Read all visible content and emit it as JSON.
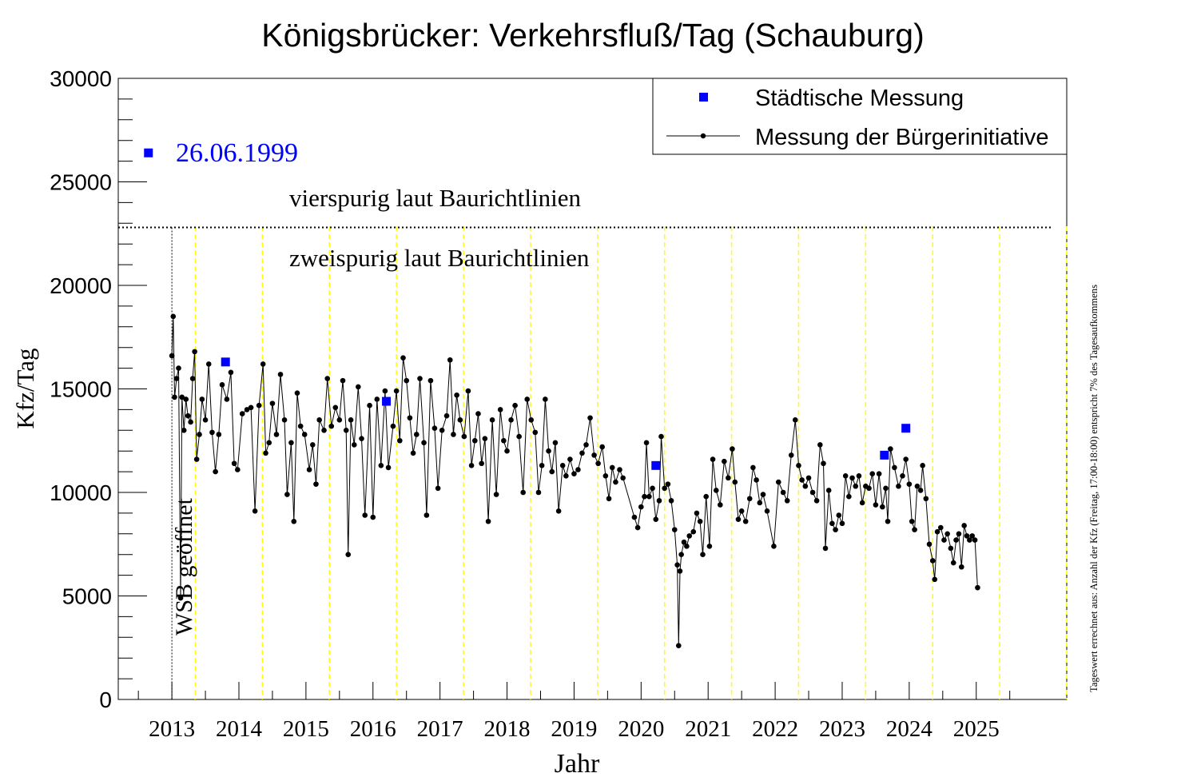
{
  "chart_data": {
    "type": "line",
    "title": "Königsbrücker: Verkehrsfluß/Tag (Schauburg)",
    "xlabel": "Jahr",
    "ylabel": "Kfz/Tag",
    "xlim": [
      2012.2,
      2026.35
    ],
    "ylim": [
      0,
      30000
    ],
    "x_ticks": [
      "2013",
      "2014",
      "2015",
      "2016",
      "2017",
      "2018",
      "2019",
      "2020",
      "2021",
      "2022",
      "2023",
      "2024",
      "2025"
    ],
    "y_ticks": [
      "0",
      "5000",
      "10000",
      "15000",
      "20000",
      "25000",
      "30000"
    ],
    "side_note": "Tageswert errechnet aus: Anzahl der Kfz (Freitag, 17:00-18:00) entspricht 7% des Tagesaufkommens",
    "legend": {
      "position": "top-right",
      "entries": [
        {
          "label": "Städtische Messung",
          "color": "#0000ff",
          "marker": "square"
        },
        {
          "label": "Messung der Bürgerinitiative",
          "color": "#000000",
          "marker": "line-dot"
        }
      ]
    },
    "annotations": {
      "label_1999": "26.06.1999",
      "four_lane": "vierspurig laut Baurichtlinien",
      "two_lane": "zweispurig laut Baurichtlinien",
      "wsb": "WSB geöffnet"
    },
    "threshold_line": {
      "y": 22800,
      "style": "dotted"
    },
    "wsb_opening_x": 2013.0,
    "year_boundaries": [
      2013.35,
      2014.35,
      2015.35,
      2016.35,
      2017.35,
      2018.35,
      2019.35,
      2020.35,
      2021.35,
      2022.35,
      2023.35,
      2024.35,
      2025.35,
      2026.35
    ],
    "colors": {
      "city": "#0000ff",
      "initiative": "#000000",
      "year_lines": "#ffff00",
      "label_1999": "#0000ff"
    },
    "series": [
      {
        "name": "Städtische Messung",
        "points": [
          {
            "x": 2012.65,
            "y": 26400
          },
          {
            "x": 2013.8,
            "y": 16300
          },
          {
            "x": 2016.2,
            "y": 14400
          },
          {
            "x": 2020.22,
            "y": 11300
          },
          {
            "x": 2023.63,
            "y": 11800
          },
          {
            "x": 2023.95,
            "y": 13100
          }
        ]
      },
      {
        "name": "Messung der Bürgerinitiative",
        "points": [
          {
            "x": 2013.0,
            "y": 16600
          },
          {
            "x": 2013.02,
            "y": 18500
          },
          {
            "x": 2013.04,
            "y": 14600
          },
          {
            "x": 2013.07,
            "y": 15500
          },
          {
            "x": 2013.1,
            "y": 16000
          },
          {
            "x": 2013.13,
            "y": 4900
          },
          {
            "x": 2013.15,
            "y": 14600
          },
          {
            "x": 2013.18,
            "y": 13000
          },
          {
            "x": 2013.21,
            "y": 14500
          },
          {
            "x": 2013.24,
            "y": 13700
          },
          {
            "x": 2013.28,
            "y": 13400
          },
          {
            "x": 2013.31,
            "y": 15500
          },
          {
            "x": 2013.34,
            "y": 16800
          },
          {
            "x": 2013.37,
            "y": 11600
          },
          {
            "x": 2013.41,
            "y": 12800
          },
          {
            "x": 2013.45,
            "y": 14500
          },
          {
            "x": 2013.5,
            "y": 13500
          },
          {
            "x": 2013.55,
            "y": 16200
          },
          {
            "x": 2013.6,
            "y": 12900
          },
          {
            "x": 2013.65,
            "y": 11000
          },
          {
            "x": 2013.7,
            "y": 12800
          },
          {
            "x": 2013.75,
            "y": 15200
          },
          {
            "x": 2013.82,
            "y": 14500
          },
          {
            "x": 2013.88,
            "y": 15800
          },
          {
            "x": 2013.93,
            "y": 11400
          },
          {
            "x": 2013.98,
            "y": 11100
          },
          {
            "x": 2014.05,
            "y": 13800
          },
          {
            "x": 2014.12,
            "y": 14000
          },
          {
            "x": 2014.18,
            "y": 14100
          },
          {
            "x": 2014.24,
            "y": 9100
          },
          {
            "x": 2014.3,
            "y": 14200
          },
          {
            "x": 2014.36,
            "y": 16200
          },
          {
            "x": 2014.4,
            "y": 11900
          },
          {
            "x": 2014.45,
            "y": 12400
          },
          {
            "x": 2014.5,
            "y": 14300
          },
          {
            "x": 2014.56,
            "y": 12800
          },
          {
            "x": 2014.62,
            "y": 15700
          },
          {
            "x": 2014.68,
            "y": 13500
          },
          {
            "x": 2014.72,
            "y": 9900
          },
          {
            "x": 2014.78,
            "y": 12400
          },
          {
            "x": 2014.82,
            "y": 8600
          },
          {
            "x": 2014.87,
            "y": 14800
          },
          {
            "x": 2014.92,
            "y": 13200
          },
          {
            "x": 2014.98,
            "y": 12800
          },
          {
            "x": 2015.05,
            "y": 11100
          },
          {
            "x": 2015.1,
            "y": 12300
          },
          {
            "x": 2015.15,
            "y": 10400
          },
          {
            "x": 2015.2,
            "y": 13500
          },
          {
            "x": 2015.27,
            "y": 13000
          },
          {
            "x": 2015.32,
            "y": 15500
          },
          {
            "x": 2015.38,
            "y": 13200
          },
          {
            "x": 2015.44,
            "y": 14100
          },
          {
            "x": 2015.5,
            "y": 13500
          },
          {
            "x": 2015.55,
            "y": 15400
          },
          {
            "x": 2015.6,
            "y": 13000
          },
          {
            "x": 2015.63,
            "y": 7000
          },
          {
            "x": 2015.67,
            "y": 13500
          },
          {
            "x": 2015.72,
            "y": 12300
          },
          {
            "x": 2015.78,
            "y": 15100
          },
          {
            "x": 2015.83,
            "y": 12600
          },
          {
            "x": 2015.88,
            "y": 8900
          },
          {
            "x": 2015.95,
            "y": 14200
          },
          {
            "x": 2016.0,
            "y": 8800
          },
          {
            "x": 2016.06,
            "y": 14500
          },
          {
            "x": 2016.12,
            "y": 11300
          },
          {
            "x": 2016.18,
            "y": 14900
          },
          {
            "x": 2016.23,
            "y": 11200
          },
          {
            "x": 2016.3,
            "y": 13200
          },
          {
            "x": 2016.35,
            "y": 14900
          },
          {
            "x": 2016.4,
            "y": 12500
          },
          {
            "x": 2016.45,
            "y": 16500
          },
          {
            "x": 2016.5,
            "y": 15400
          },
          {
            "x": 2016.55,
            "y": 13600
          },
          {
            "x": 2016.6,
            "y": 11900
          },
          {
            "x": 2016.65,
            "y": 12800
          },
          {
            "x": 2016.7,
            "y": 15500
          },
          {
            "x": 2016.76,
            "y": 12400
          },
          {
            "x": 2016.8,
            "y": 8900
          },
          {
            "x": 2016.86,
            "y": 15400
          },
          {
            "x": 2016.92,
            "y": 13100
          },
          {
            "x": 2016.97,
            "y": 10200
          },
          {
            "x": 2017.03,
            "y": 13000
          },
          {
            "x": 2017.1,
            "y": 13700
          },
          {
            "x": 2017.15,
            "y": 16400
          },
          {
            "x": 2017.2,
            "y": 12800
          },
          {
            "x": 2017.25,
            "y": 14700
          },
          {
            "x": 2017.3,
            "y": 13500
          },
          {
            "x": 2017.36,
            "y": 12700
          },
          {
            "x": 2017.42,
            "y": 14900
          },
          {
            "x": 2017.47,
            "y": 11300
          },
          {
            "x": 2017.52,
            "y": 12500
          },
          {
            "x": 2017.57,
            "y": 13800
          },
          {
            "x": 2017.62,
            "y": 11400
          },
          {
            "x": 2017.67,
            "y": 12600
          },
          {
            "x": 2017.72,
            "y": 8600
          },
          {
            "x": 2017.78,
            "y": 13500
          },
          {
            "x": 2017.84,
            "y": 9900
          },
          {
            "x": 2017.9,
            "y": 14000
          },
          {
            "x": 2017.95,
            "y": 12500
          },
          {
            "x": 2018.0,
            "y": 12000
          },
          {
            "x": 2018.06,
            "y": 13500
          },
          {
            "x": 2018.12,
            "y": 14200
          },
          {
            "x": 2018.18,
            "y": 12700
          },
          {
            "x": 2018.24,
            "y": 10000
          },
          {
            "x": 2018.3,
            "y": 14500
          },
          {
            "x": 2018.36,
            "y": 13500
          },
          {
            "x": 2018.42,
            "y": 12900
          },
          {
            "x": 2018.47,
            "y": 10000
          },
          {
            "x": 2018.52,
            "y": 11300
          },
          {
            "x": 2018.57,
            "y": 14500
          },
          {
            "x": 2018.62,
            "y": 12000
          },
          {
            "x": 2018.67,
            "y": 11000
          },
          {
            "x": 2018.72,
            "y": 12400
          },
          {
            "x": 2018.77,
            "y": 9100
          },
          {
            "x": 2018.83,
            "y": 11300
          },
          {
            "x": 2018.88,
            "y": 10800
          },
          {
            "x": 2018.94,
            "y": 11600
          },
          {
            "x": 2019.0,
            "y": 10900
          },
          {
            "x": 2019.06,
            "y": 11100
          },
          {
            "x": 2019.12,
            "y": 11900
          },
          {
            "x": 2019.18,
            "y": 12300
          },
          {
            "x": 2019.24,
            "y": 13600
          },
          {
            "x": 2019.3,
            "y": 11800
          },
          {
            "x": 2019.36,
            "y": 11400
          },
          {
            "x": 2019.42,
            "y": 12200
          },
          {
            "x": 2019.47,
            "y": 10800
          },
          {
            "x": 2019.52,
            "y": 9700
          },
          {
            "x": 2019.57,
            "y": 11200
          },
          {
            "x": 2019.62,
            "y": 10500
          },
          {
            "x": 2019.68,
            "y": 11100
          },
          {
            "x": 2019.73,
            "y": 10700
          },
          {
            "x": 2019.9,
            "y": 8800
          },
          {
            "x": 2019.95,
            "y": 8300
          },
          {
            "x": 2020.0,
            "y": 9300
          },
          {
            "x": 2020.05,
            "y": 9800
          },
          {
            "x": 2020.08,
            "y": 12400
          },
          {
            "x": 2020.12,
            "y": 9800
          },
          {
            "x": 2020.17,
            "y": 10200
          },
          {
            "x": 2020.22,
            "y": 8700
          },
          {
            "x": 2020.27,
            "y": 9600
          },
          {
            "x": 2020.3,
            "y": 12700
          },
          {
            "x": 2020.35,
            "y": 10200
          },
          {
            "x": 2020.4,
            "y": 10400
          },
          {
            "x": 2020.45,
            "y": 9600
          },
          {
            "x": 2020.5,
            "y": 8200
          },
          {
            "x": 2020.54,
            "y": 6500
          },
          {
            "x": 2020.56,
            "y": 2600
          },
          {
            "x": 2020.58,
            "y": 6200
          },
          {
            "x": 2020.6,
            "y": 7000
          },
          {
            "x": 2020.64,
            "y": 7600
          },
          {
            "x": 2020.68,
            "y": 7400
          },
          {
            "x": 2020.72,
            "y": 7900
          },
          {
            "x": 2020.78,
            "y": 8100
          },
          {
            "x": 2020.83,
            "y": 9000
          },
          {
            "x": 2020.88,
            "y": 8600
          },
          {
            "x": 2020.92,
            "y": 7000
          },
          {
            "x": 2020.97,
            "y": 9800
          },
          {
            "x": 2021.02,
            "y": 7400
          },
          {
            "x": 2021.07,
            "y": 11600
          },
          {
            "x": 2021.12,
            "y": 10100
          },
          {
            "x": 2021.18,
            "y": 9400
          },
          {
            "x": 2021.24,
            "y": 11500
          },
          {
            "x": 2021.3,
            "y": 10700
          },
          {
            "x": 2021.36,
            "y": 12100
          },
          {
            "x": 2021.4,
            "y": 10500
          },
          {
            "x": 2021.45,
            "y": 8700
          },
          {
            "x": 2021.5,
            "y": 9100
          },
          {
            "x": 2021.56,
            "y": 8600
          },
          {
            "x": 2021.62,
            "y": 9700
          },
          {
            "x": 2021.67,
            "y": 11200
          },
          {
            "x": 2021.72,
            "y": 10600
          },
          {
            "x": 2021.77,
            "y": 9500
          },
          {
            "x": 2021.82,
            "y": 9900
          },
          {
            "x": 2021.88,
            "y": 9100
          },
          {
            "x": 2021.98,
            "y": 7400
          },
          {
            "x": 2022.05,
            "y": 10500
          },
          {
            "x": 2022.12,
            "y": 10000
          },
          {
            "x": 2022.18,
            "y": 9600
          },
          {
            "x": 2022.24,
            "y": 11800
          },
          {
            "x": 2022.3,
            "y": 13500
          },
          {
            "x": 2022.35,
            "y": 11300
          },
          {
            "x": 2022.4,
            "y": 10600
          },
          {
            "x": 2022.45,
            "y": 10300
          },
          {
            "x": 2022.5,
            "y": 10700
          },
          {
            "x": 2022.56,
            "y": 10000
          },
          {
            "x": 2022.62,
            "y": 9600
          },
          {
            "x": 2022.67,
            "y": 12300
          },
          {
            "x": 2022.72,
            "y": 11400
          },
          {
            "x": 2022.75,
            "y": 7300
          },
          {
            "x": 2022.8,
            "y": 10100
          },
          {
            "x": 2022.85,
            "y": 8500
          },
          {
            "x": 2022.9,
            "y": 8200
          },
          {
            "x": 2022.95,
            "y": 8900
          },
          {
            "x": 2023.0,
            "y": 8500
          },
          {
            "x": 2023.05,
            "y": 10800
          },
          {
            "x": 2023.1,
            "y": 9800
          },
          {
            "x": 2023.15,
            "y": 10700
          },
          {
            "x": 2023.2,
            "y": 10300
          },
          {
            "x": 2023.25,
            "y": 10800
          },
          {
            "x": 2023.3,
            "y": 9500
          },
          {
            "x": 2023.35,
            "y": 10300
          },
          {
            "x": 2023.4,
            "y": 10200
          },
          {
            "x": 2023.45,
            "y": 10900
          },
          {
            "x": 2023.5,
            "y": 9400
          },
          {
            "x": 2023.55,
            "y": 10900
          },
          {
            "x": 2023.6,
            "y": 9300
          },
          {
            "x": 2023.65,
            "y": 10200
          },
          {
            "x": 2023.68,
            "y": 8600
          },
          {
            "x": 2023.72,
            "y": 12100
          },
          {
            "x": 2023.78,
            "y": 11200
          },
          {
            "x": 2023.84,
            "y": 10300
          },
          {
            "x": 2023.9,
            "y": 10800
          },
          {
            "x": 2023.95,
            "y": 11600
          },
          {
            "x": 2024.0,
            "y": 10400
          },
          {
            "x": 2024.04,
            "y": 8600
          },
          {
            "x": 2024.08,
            "y": 8200
          },
          {
            "x": 2024.12,
            "y": 10300
          },
          {
            "x": 2024.17,
            "y": 10100
          },
          {
            "x": 2024.2,
            "y": 11300
          },
          {
            "x": 2024.25,
            "y": 9700
          },
          {
            "x": 2024.3,
            "y": 7500
          },
          {
            "x": 2024.35,
            "y": 6700
          },
          {
            "x": 2024.38,
            "y": 5800
          },
          {
            "x": 2024.42,
            "y": 8100
          },
          {
            "x": 2024.47,
            "y": 8300
          },
          {
            "x": 2024.52,
            "y": 7700
          },
          {
            "x": 2024.57,
            "y": 8000
          },
          {
            "x": 2024.62,
            "y": 7300
          },
          {
            "x": 2024.66,
            "y": 6600
          },
          {
            "x": 2024.7,
            "y": 7700
          },
          {
            "x": 2024.74,
            "y": 8000
          },
          {
            "x": 2024.78,
            "y": 6400
          },
          {
            "x": 2024.82,
            "y": 8400
          },
          {
            "x": 2024.86,
            "y": 7900
          },
          {
            "x": 2024.9,
            "y": 7700
          },
          {
            "x": 2024.94,
            "y": 7900
          },
          {
            "x": 2024.98,
            "y": 7700
          },
          {
            "x": 2025.02,
            "y": 5400
          }
        ]
      }
    ]
  }
}
